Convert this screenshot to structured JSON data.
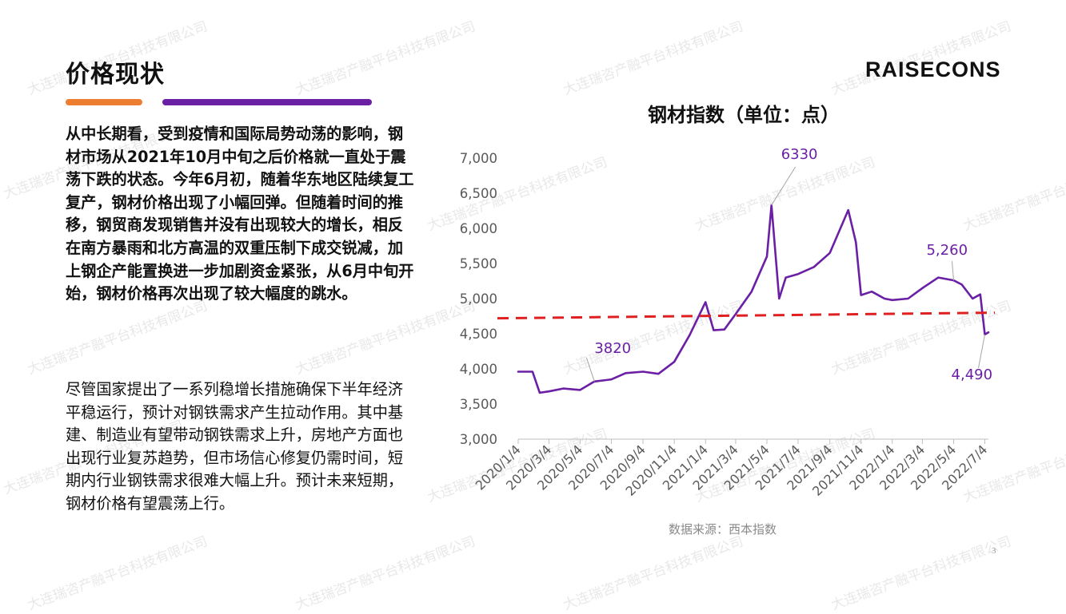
{
  "title": "价格现状",
  "logo": "RAISECONS",
  "accent": {
    "orange": "#ED7D31",
    "purple": "#6A1FA5",
    "red": "#E02020"
  },
  "paragraph1": "从中长期看，受到疫情和国际局势动荡的影响，钢材市场从2021年10月中旬之后价格就一直处于震荡下跌的状态。今年6月初，随着华东地区陆续复工复产，钢材价格出现了小幅回弹。但随着时间的推移，钢贸商发现销售并没有出现较大的增长，相反在南方暴雨和北方高温的双重压制下成交锐减，加上钢企产能置换进一步加剧资金紧张，从6月中旬开始，钢材价格再次出现了较大幅度的跳水。",
  "paragraph2": "尽管国家提出了一系列稳增长措施确保下半年经济平稳运行，预计对钢铁需求产生拉动作用。其中基建、制造业有望带动钢铁需求上升，房地产方面也出现行业复苏趋势，但市场信心修复仍需时间，短期内行业钢铁需求很难大幅上升。预计未来短期，钢材价格有望震荡上行。",
  "source": "数据来源：西本指数",
  "page_number": "3",
  "watermark": "大连瑞咨产融平台科技有限公司",
  "chart_data": {
    "type": "line",
    "title": "钢材指数（单位：点）",
    "xlabel": "",
    "ylabel": "",
    "ylim": [
      3000,
      7000
    ],
    "yticks": [
      3000,
      3500,
      4000,
      4500,
      5000,
      5500,
      6000,
      6500,
      7000
    ],
    "ytick_labels": [
      "3,000",
      "3,500",
      "4,000",
      "4,500",
      "5,000",
      "5,500",
      "6,000",
      "6,500",
      "7,000"
    ],
    "xticks": [
      "2020/1/4",
      "2020/3/4",
      "2020/5/4",
      "2020/7/4",
      "2020/9/4",
      "2020/11/4",
      "2021/1/4",
      "2021/3/4",
      "2021/5/4",
      "2021/7/4",
      "2021/9/4",
      "2021/11/4",
      "2022/1/4",
      "2022/3/4",
      "2022/5/4",
      "2022/7/4"
    ],
    "grid": false,
    "legend": "none",
    "series": [
      {
        "line_color": "#6A1FA5",
        "x": [
          "2020/1/4",
          "2020/2/1",
          "2020/2/15",
          "2020/3/4",
          "2020/4/1",
          "2020/5/4",
          "2020/6/1",
          "2020/7/4",
          "2020/8/1",
          "2020/9/4",
          "2020/10/4",
          "2020/11/4",
          "2020/12/4",
          "2021/1/4",
          "2021/1/20",
          "2021/2/10",
          "2021/3/4",
          "2021/4/4",
          "2021/5/4",
          "2021/5/13",
          "2021/5/28",
          "2021/6/10",
          "2021/7/4",
          "2021/8/4",
          "2021/9/4",
          "2021/10/10",
          "2021/10/25",
          "2021/11/4",
          "2021/11/25",
          "2021/12/20",
          "2022/1/4",
          "2022/2/4",
          "2022/3/4",
          "2022/4/4",
          "2022/5/4",
          "2022/5/20",
          "2022/6/10",
          "2022/6/25",
          "2022/7/4",
          "2022/7/11"
        ],
        "y": [
          3960,
          3960,
          3660,
          3680,
          3720,
          3700,
          3820,
          3850,
          3940,
          3960,
          3930,
          4100,
          4480,
          4950,
          4550,
          4560,
          4780,
          5100,
          5600,
          6330,
          5000,
          5300,
          5350,
          5450,
          5650,
          6260,
          5800,
          5050,
          5100,
          5000,
          4980,
          5000,
          5150,
          5300,
          5260,
          5200,
          5000,
          5060,
          4490,
          4520
        ]
      }
    ],
    "trend_line": {
      "color": "#E02020",
      "dashed": true,
      "x": [
        "2020/1/4",
        "2022/7/11"
      ],
      "y": [
        4720,
        4800
      ]
    },
    "annotations": [
      {
        "text": "3820",
        "x": "2020/6/1",
        "y": 3820
      },
      {
        "text": "6330",
        "x": "2021/5/13",
        "y": 6330
      },
      {
        "text": "5,260",
        "x": "2022/5/4",
        "y": 5260
      },
      {
        "text": "4,490",
        "x": "2022/7/4",
        "y": 4490
      }
    ]
  }
}
